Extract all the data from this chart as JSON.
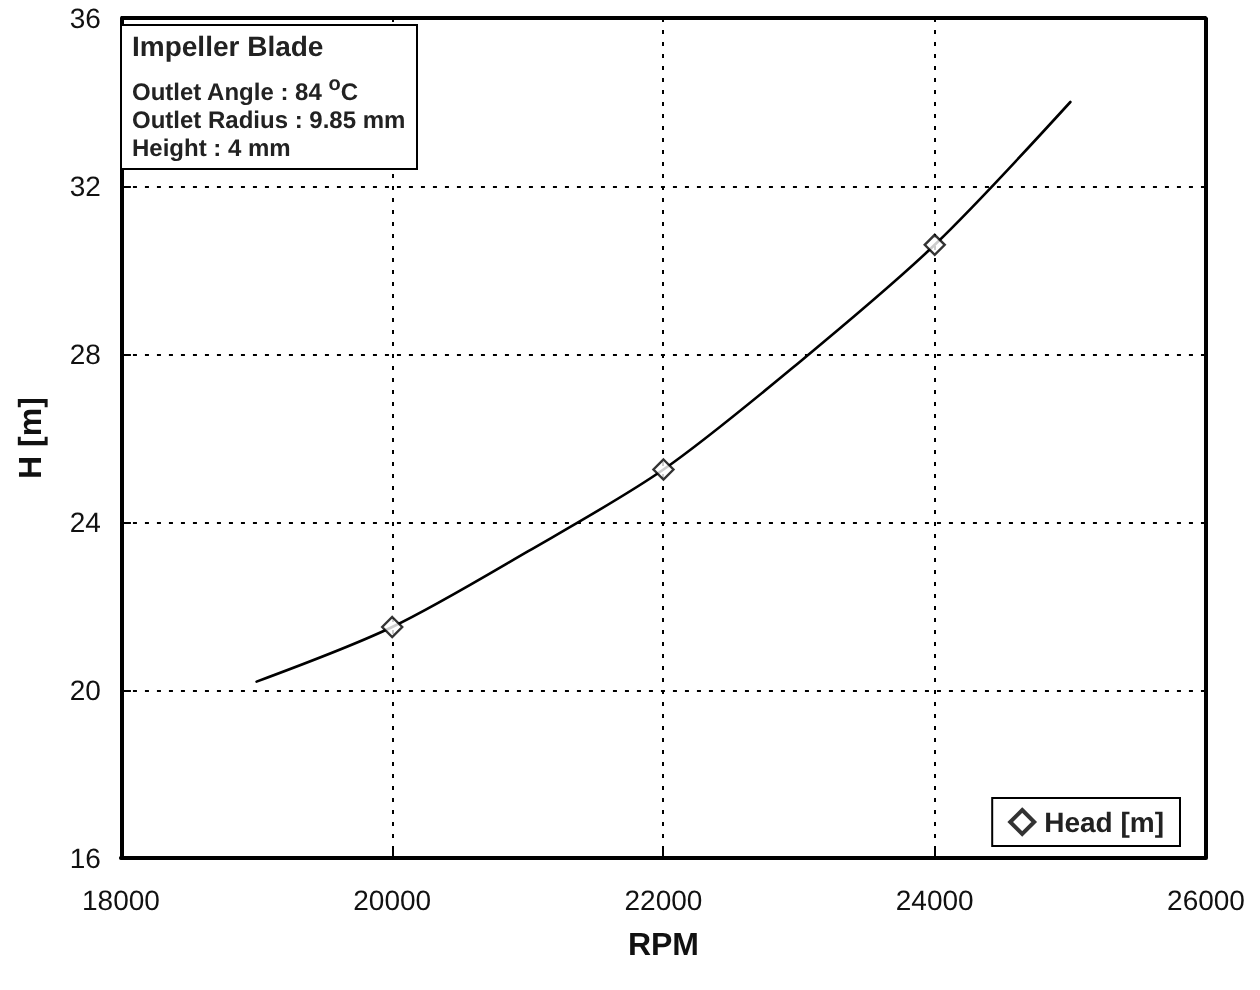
{
  "chart_data": {
    "type": "line",
    "xlabel": "RPM",
    "ylabel": "H [m]",
    "annotations": [
      "Impeller Blade",
      "Outlet Angle : 84 $^{o}$C",
      "Outlet Radius : 9.85 mm",
      "Height : 4 mm"
    ],
    "series": [
      {
        "type": "line",
        "color": "#000000",
        "marker": "none",
        "line_style": "solid",
        "x": [
          19000,
          20000,
          21000,
          22000,
          23000,
          24000,
          25000
        ],
        "values": [
          20.2,
          21.5,
          23.3,
          25.25,
          27.8,
          30.6,
          34
        ]
      },
      {
        "type": "scatter",
        "name": "Head [m]",
        "color": "#000000",
        "marker": "diamond",
        "x": [
          20000,
          22000,
          24000
        ],
        "values": [
          21.5,
          25.25,
          30.6
        ]
      }
    ],
    "xlim": [
      18000,
      26000
    ],
    "xticks": [
      18000,
      20000,
      22000,
      24000,
      26000
    ],
    "ylim": [
      16,
      36
    ],
    "yticks": [
      16,
      20,
      24,
      28,
      32,
      36
    ],
    "grid": true,
    "legend": "bottom right"
  }
}
